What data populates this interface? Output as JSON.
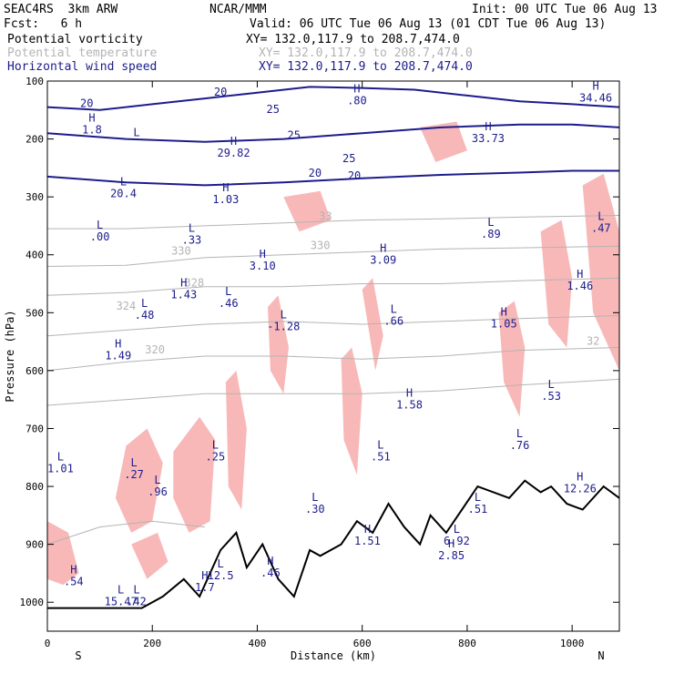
{
  "header": {
    "model": "SEAC4RS  3km ARW",
    "org": "NCAR/MMM",
    "init": "Init: 00 UTC Tue 06 Aug 13",
    "fcst": "Fcst:   6 h",
    "valid": "Valid: 06 UTC Tue 06 Aug 13 (01 CDT Tue 06 Aug 13)",
    "fields": [
      {
        "name": "Potential vorticity",
        "xy": "XY= 132.0,117.9 to 208.7,474.0",
        "color": "#000000"
      },
      {
        "name": "Potential temperature",
        "xy": "XY= 132.0,117.9 to 208.7,474.0",
        "color": "#b4b4b4"
      },
      {
        "name": "Horizontal wind speed",
        "xy": "XY= 132.0,117.9 to 208.7,474.0",
        "color": "#1c1c8c"
      }
    ]
  },
  "chart_data": {
    "type": "cross-section",
    "xlabel": "Distance (km)",
    "ylabel": "Pressure (hPa)",
    "xlim": [
      0,
      1090
    ],
    "ylim": [
      1050,
      100
    ],
    "xticks": [
      0,
      200,
      400,
      600,
      800,
      1000
    ],
    "yticks": [
      100,
      200,
      300,
      400,
      500,
      600,
      700,
      800,
      900,
      1000
    ],
    "left_end_label": "S",
    "right_end_label": "N",
    "colors": {
      "wind_contour": "#1c1c8c",
      "theta_contour": "#b4b4b4",
      "pv_shade": "#f8b8b8",
      "pv_contour": "#5a0a3a",
      "terrain": "#000000"
    },
    "wind_contour_labels": [
      {
        "x": 75,
        "p": 145,
        "label": "20"
      },
      {
        "x": 330,
        "p": 125,
        "label": "20"
      },
      {
        "x": 585,
        "p": 270,
        "label": "20"
      },
      {
        "x": 510,
        "p": 265,
        "label": "20"
      },
      {
        "x": 575,
        "p": 240,
        "label": "25"
      },
      {
        "x": 470,
        "p": 200,
        "label": "25"
      },
      {
        "x": 430,
        "p": 155,
        "label": "25"
      }
    ],
    "theta_contour_labels": [
      {
        "x": 520,
        "p": 390,
        "label": "330"
      },
      {
        "x": 255,
        "p": 400,
        "label": "330"
      },
      {
        "x": 280,
        "p": 455,
        "label": "328"
      },
      {
        "x": 150,
        "p": 495,
        "label": "324"
      },
      {
        "x": 205,
        "p": 570,
        "label": "320"
      },
      {
        "x": 1040,
        "p": 555,
        "label": "32"
      },
      {
        "x": 530,
        "p": 340,
        "label": "33"
      }
    ],
    "extrema": [
      {
        "x": 170,
        "p": 195,
        "type": "L",
        "value": ""
      },
      {
        "x": 355,
        "p": 210,
        "type": "H",
        "value": "29.82"
      },
      {
        "x": 145,
        "p": 280,
        "type": "L",
        "value": "20.4"
      },
      {
        "x": 340,
        "p": 290,
        "type": "H",
        "value": "1.03"
      },
      {
        "x": 100,
        "p": 355,
        "type": "L",
        "value": ".00"
      },
      {
        "x": 275,
        "p": 360,
        "type": "L",
        "value": ".33"
      },
      {
        "x": 410,
        "p": 405,
        "type": "H",
        "value": "3.10"
      },
      {
        "x": 640,
        "p": 395,
        "type": "H",
        "value": "3.09"
      },
      {
        "x": 260,
        "p": 455,
        "type": "H",
        "value": "1.43"
      },
      {
        "x": 345,
        "p": 470,
        "type": "L",
        "value": ".46"
      },
      {
        "x": 185,
        "p": 490,
        "type": "L",
        "value": ".48"
      },
      {
        "x": 450,
        "p": 510,
        "type": "L",
        "value": "-1.28"
      },
      {
        "x": 660,
        "p": 500,
        "type": "L",
        "value": ".66"
      },
      {
        "x": 870,
        "p": 505,
        "type": "H",
        "value": "1.05"
      },
      {
        "x": 1015,
        "p": 440,
        "type": "H",
        "value": "1.46"
      },
      {
        "x": 135,
        "p": 560,
        "type": "H",
        "value": "1.49"
      },
      {
        "x": 690,
        "p": 645,
        "type": "H",
        "value": "1.58"
      },
      {
        "x": 960,
        "p": 630,
        "type": "L",
        "value": ".53"
      },
      {
        "x": 900,
        "p": 715,
        "type": "L",
        "value": ".76"
      },
      {
        "x": 320,
        "p": 735,
        "type": "L",
        "value": ".25"
      },
      {
        "x": 635,
        "p": 735,
        "type": "L",
        "value": ".51"
      },
      {
        "x": 25,
        "p": 755,
        "type": "L",
        "value": "1.01"
      },
      {
        "x": 165,
        "p": 765,
        "type": "L",
        "value": ".27"
      },
      {
        "x": 210,
        "p": 795,
        "type": "L",
        "value": ".96"
      },
      {
        "x": 1015,
        "p": 790,
        "type": "H",
        "value": "12.26"
      },
      {
        "x": 510,
        "p": 825,
        "type": "L",
        "value": ".30"
      },
      {
        "x": 820,
        "p": 825,
        "type": "L",
        "value": ".51"
      },
      {
        "x": 610,
        "p": 880,
        "type": "H",
        "value": "1.51"
      },
      {
        "x": 780,
        "p": 880,
        "type": "L",
        "value": "6.92"
      },
      {
        "x": 330,
        "p": 940,
        "type": "L",
        "value": "12.5"
      },
      {
        "x": 425,
        "p": 935,
        "type": "H",
        "value": ".46"
      },
      {
        "x": 50,
        "p": 950,
        "type": "H",
        "value": ".54"
      },
      {
        "x": 140,
        "p": 985,
        "type": "L",
        "value": "15.47"
      },
      {
        "x": 170,
        "p": 985,
        "type": "L",
        "value": ".42"
      },
      {
        "x": 770,
        "p": 905,
        "type": "H",
        "value": "2.85"
      },
      {
        "x": 300,
        "p": 960,
        "type": "H",
        "value": "1.7"
      },
      {
        "x": 590,
        "p": 120,
        "type": "H",
        "value": ".80"
      },
      {
        "x": 1045,
        "p": 115,
        "type": "H",
        "value": "34.46"
      },
      {
        "x": 840,
        "p": 185,
        "type": "H",
        "value": "33.73"
      },
      {
        "x": 85,
        "p": 170,
        "type": "H",
        "value": "1.8"
      },
      {
        "x": 845,
        "p": 350,
        "type": "L",
        "value": ".89"
      },
      {
        "x": 1055,
        "p": 340,
        "type": "L",
        "value": ".47"
      }
    ],
    "wind_speed_contours": [
      {
        "label": "20",
        "points": [
          [
            0,
            145
          ],
          [
            100,
            150
          ],
          [
            200,
            140
          ],
          [
            300,
            130
          ],
          [
            400,
            120
          ],
          [
            500,
            110
          ],
          [
            600,
            112
          ],
          [
            700,
            115
          ],
          [
            800,
            125
          ],
          [
            900,
            135
          ],
          [
            1000,
            140
          ],
          [
            1090,
            145
          ]
        ]
      },
      {
        "label": "25",
        "points": [
          [
            0,
            190
          ],
          [
            150,
            200
          ],
          [
            300,
            205
          ],
          [
            450,
            200
          ],
          [
            600,
            190
          ],
          [
            750,
            180
          ],
          [
            900,
            175
          ],
          [
            1000,
            175
          ],
          [
            1090,
            180
          ]
        ]
      },
      {
        "label": "20",
        "points": [
          [
            0,
            265
          ],
          [
            150,
            275
          ],
          [
            300,
            280
          ],
          [
            450,
            275
          ],
          [
            600,
            268
          ],
          [
            750,
            262
          ],
          [
            900,
            258
          ],
          [
            1000,
            255
          ],
          [
            1090,
            255
          ]
        ]
      }
    ],
    "theta_contours": [
      {
        "points": [
          [
            0,
            355
          ],
          [
            150,
            355
          ],
          [
            300,
            350
          ],
          [
            450,
            345
          ],
          [
            600,
            340
          ],
          [
            750,
            338
          ],
          [
            900,
            335
          ],
          [
            1090,
            332
          ]
        ]
      },
      {
        "points": [
          [
            0,
            420
          ],
          [
            150,
            418
          ],
          [
            300,
            405
          ],
          [
            450,
            400
          ],
          [
            600,
            395
          ],
          [
            750,
            390
          ],
          [
            900,
            388
          ],
          [
            1090,
            385
          ]
        ]
      },
      {
        "points": [
          [
            0,
            470
          ],
          [
            150,
            465
          ],
          [
            300,
            455
          ],
          [
            450,
            455
          ],
          [
            600,
            450
          ],
          [
            750,
            450
          ],
          [
            900,
            445
          ],
          [
            1090,
            440
          ]
        ]
      },
      {
        "points": [
          [
            0,
            540
          ],
          [
            150,
            530
          ],
          [
            300,
            520
          ],
          [
            450,
            515
          ],
          [
            600,
            520
          ],
          [
            750,
            515
          ],
          [
            900,
            510
          ],
          [
            1090,
            505
          ]
        ]
      },
      {
        "points": [
          [
            0,
            600
          ],
          [
            150,
            585
          ],
          [
            300,
            575
          ],
          [
            450,
            575
          ],
          [
            600,
            580
          ],
          [
            750,
            575
          ],
          [
            900,
            565
          ],
          [
            1090,
            560
          ]
        ]
      },
      {
        "points": [
          [
            0,
            660
          ],
          [
            150,
            650
          ],
          [
            300,
            640
          ],
          [
            450,
            640
          ],
          [
            600,
            640
          ],
          [
            750,
            635
          ],
          [
            900,
            625
          ],
          [
            1090,
            615
          ]
        ]
      },
      {
        "points": [
          [
            0,
            900
          ],
          [
            100,
            870
          ],
          [
            200,
            860
          ],
          [
            300,
            870
          ]
        ]
      }
    ],
    "pv_shaded_regions": [
      {
        "points": [
          [
            150,
            730
          ],
          [
            190,
            700
          ],
          [
            220,
            760
          ],
          [
            200,
            860
          ],
          [
            160,
            880
          ],
          [
            130,
            820
          ]
        ]
      },
      {
        "points": [
          [
            240,
            740
          ],
          [
            290,
            680
          ],
          [
            320,
            720
          ],
          [
            310,
            860
          ],
          [
            270,
            880
          ],
          [
            240,
            820
          ]
        ]
      },
      {
        "points": [
          [
            340,
            620
          ],
          [
            360,
            600
          ],
          [
            380,
            700
          ],
          [
            370,
            840
          ],
          [
            345,
            800
          ]
        ]
      },
      {
        "points": [
          [
            420,
            490
          ],
          [
            440,
            470
          ],
          [
            460,
            560
          ],
          [
            450,
            640
          ],
          [
            425,
            600
          ]
        ]
      },
      {
        "points": [
          [
            560,
            580
          ],
          [
            580,
            560
          ],
          [
            600,
            640
          ],
          [
            590,
            780
          ],
          [
            565,
            720
          ]
        ]
      },
      {
        "points": [
          [
            600,
            460
          ],
          [
            620,
            440
          ],
          [
            640,
            540
          ],
          [
            625,
            600
          ]
        ]
      },
      {
        "points": [
          [
            860,
            500
          ],
          [
            890,
            480
          ],
          [
            910,
            560
          ],
          [
            900,
            680
          ],
          [
            870,
            620
          ]
        ]
      },
      {
        "points": [
          [
            940,
            360
          ],
          [
            980,
            340
          ],
          [
            1000,
            440
          ],
          [
            990,
            560
          ],
          [
            955,
            520
          ]
        ]
      },
      {
        "points": [
          [
            1020,
            280
          ],
          [
            1060,
            260
          ],
          [
            1090,
            360
          ],
          [
            1090,
            600
          ],
          [
            1040,
            500
          ]
        ]
      },
      {
        "points": [
          [
            450,
            300
          ],
          [
            520,
            290
          ],
          [
            540,
            340
          ],
          [
            480,
            360
          ]
        ]
      },
      {
        "points": [
          [
            710,
            180
          ],
          [
            780,
            170
          ],
          [
            800,
            220
          ],
          [
            740,
            240
          ]
        ]
      },
      {
        "points": [
          [
            0,
            860
          ],
          [
            40,
            880
          ],
          [
            60,
            950
          ],
          [
            30,
            970
          ],
          [
            0,
            960
          ]
        ]
      },
      {
        "points": [
          [
            160,
            900
          ],
          [
            210,
            880
          ],
          [
            230,
            930
          ],
          [
            190,
            960
          ]
        ]
      }
    ],
    "terrain": [
      [
        0,
        1010
      ],
      [
        180,
        1010
      ],
      [
        220,
        990
      ],
      [
        260,
        960
      ],
      [
        290,
        990
      ],
      [
        330,
        910
      ],
      [
        360,
        880
      ],
      [
        380,
        940
      ],
      [
        410,
        900
      ],
      [
        440,
        960
      ],
      [
        470,
        990
      ],
      [
        500,
        910
      ],
      [
        520,
        920
      ],
      [
        560,
        900
      ],
      [
        590,
        860
      ],
      [
        620,
        880
      ],
      [
        650,
        830
      ],
      [
        680,
        870
      ],
      [
        710,
        900
      ],
      [
        730,
        850
      ],
      [
        760,
        880
      ],
      [
        790,
        840
      ],
      [
        820,
        800
      ],
      [
        850,
        810
      ],
      [
        880,
        820
      ],
      [
        910,
        790
      ],
      [
        940,
        810
      ],
      [
        960,
        800
      ],
      [
        990,
        830
      ],
      [
        1020,
        840
      ],
      [
        1060,
        800
      ],
      [
        1090,
        820
      ]
    ],
    "wind_vectors_note": ""
  }
}
